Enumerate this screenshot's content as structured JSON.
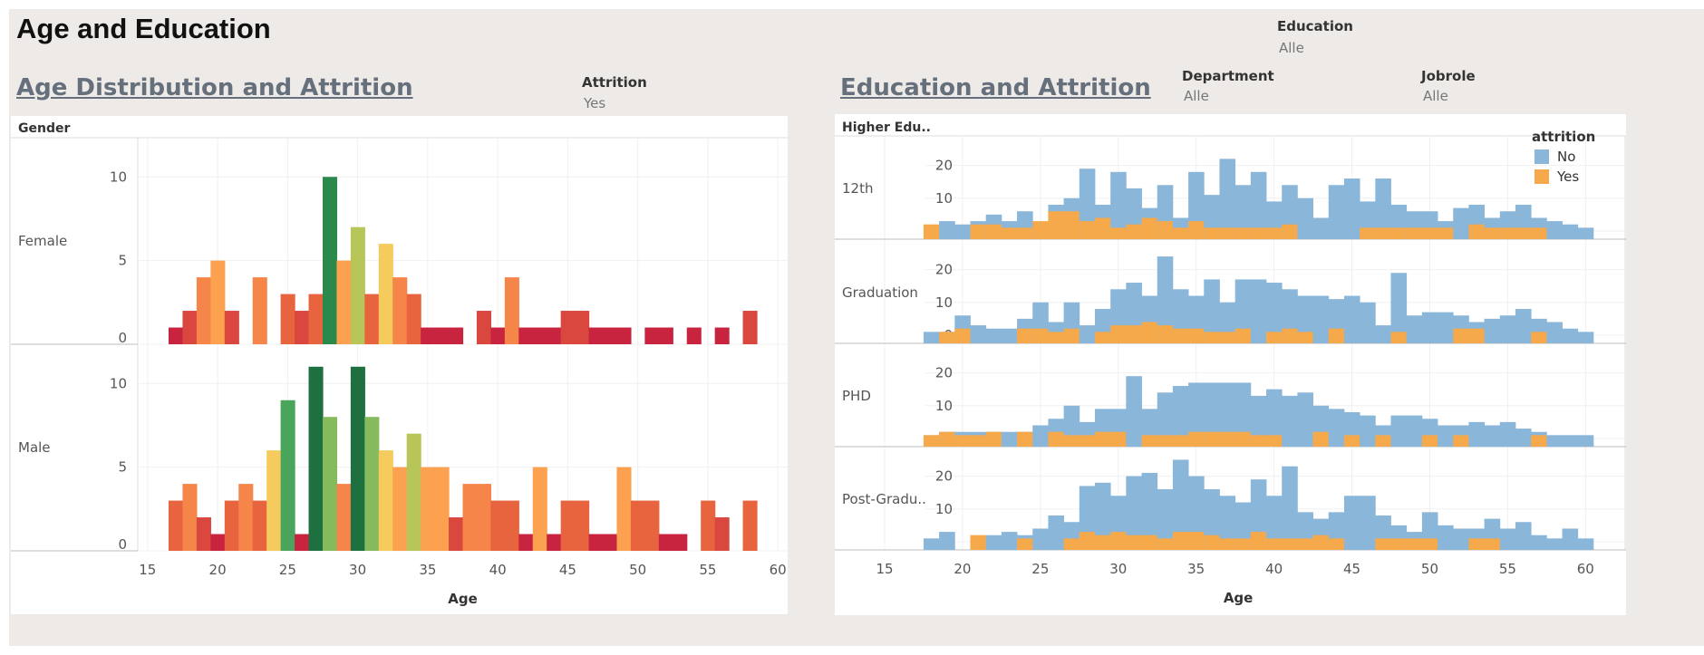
{
  "dashboard": {
    "title": "Age and Education",
    "left_sheet_title": "Age Distribution and Attrition",
    "right_sheet_title": "Education and Attrition"
  },
  "filters": {
    "attrition": {
      "label": "Attrition",
      "value": "Yes"
    },
    "education": {
      "label": "Education",
      "value": "Alle"
    },
    "department": {
      "label": "Department",
      "value": "Alle"
    },
    "jobrole": {
      "label": "Jobrole",
      "value": "Alle"
    }
  },
  "legend": {
    "title": "attrition",
    "items": [
      {
        "label": "No",
        "color": "#8ab6da"
      },
      {
        "label": "Yes",
        "color": "#f6a94a"
      }
    ]
  },
  "chart_data": [
    {
      "type": "bar",
      "title": "Age Distribution and Attrition",
      "row_header": "Gender",
      "xlabel": "Age",
      "x_ticks": [
        15,
        20,
        25,
        30,
        35,
        40,
        45,
        50,
        55,
        60
      ],
      "x_range": [
        14.3,
        60.7
      ],
      "y_ticks": [
        0,
        5,
        10
      ],
      "y_range": [
        0,
        11.8
      ],
      "bar_color_scale": [
        "#c8243f",
        "#d9473f",
        "#e8643f",
        "#f58548",
        "#fba150",
        "#f5cb5d",
        "#b7c559",
        "#86bb5d",
        "#4aa55c",
        "#2b8a4b",
        "#1e7040"
      ],
      "rows": [
        {
          "label": "Female",
          "ages": [
            17,
            18,
            19,
            20,
            21,
            23,
            25,
            26,
            27,
            28,
            29,
            30,
            31,
            32,
            33,
            34,
            35,
            36,
            37,
            39,
            40,
            41,
            42,
            43,
            44,
            45,
            46,
            47,
            48,
            49,
            51,
            52,
            54,
            56,
            58
          ],
          "counts": [
            1,
            2,
            4,
            5,
            2,
            4,
            3,
            2,
            3,
            10,
            5,
            7,
            3,
            6,
            4,
            3,
            1,
            1,
            1,
            2,
            1,
            4,
            1,
            1,
            1,
            2,
            2,
            1,
            1,
            1,
            1,
            1,
            1,
            1,
            2
          ]
        },
        {
          "label": "Male",
          "ages": [
            17,
            18,
            19,
            20,
            21,
            22,
            23,
            24,
            25,
            26,
            27,
            28,
            29,
            30,
            31,
            32,
            33,
            34,
            35,
            36,
            37,
            38,
            39,
            40,
            41,
            42,
            43,
            44,
            45,
            46,
            47,
            48,
            49,
            50,
            51,
            52,
            53,
            55,
            56,
            58
          ],
          "counts": [
            3,
            4,
            2,
            1,
            3,
            4,
            3,
            6,
            9,
            1,
            11,
            8,
            4,
            11,
            8,
            6,
            5,
            7,
            5,
            5,
            2,
            4,
            4,
            3,
            3,
            1,
            5,
            1,
            3,
            3,
            1,
            1,
            5,
            3,
            3,
            1,
            1,
            3,
            2,
            3
          ]
        }
      ]
    },
    {
      "type": "bar",
      "title": "Education and Attrition",
      "row_header": "Higher Edu..",
      "xlabel": "Age",
      "x_ticks": [
        15,
        20,
        25,
        30,
        35,
        40,
        45,
        50,
        55,
        60
      ],
      "x_range": [
        11.8,
        62.6
      ],
      "y_ticks": [
        0,
        10,
        20
      ],
      "y_range": [
        -2.5,
        29
      ],
      "age_start": 18,
      "age_end": 60,
      "series": [
        {
          "name": "No",
          "color": "#8ab6da"
        },
        {
          "name": "Yes",
          "color": "#f6a94a"
        }
      ],
      "rows": [
        {
          "label": "12th",
          "no": [
            1,
            3,
            2,
            3,
            5,
            3,
            6,
            2,
            8,
            10,
            19,
            8,
            18,
            13,
            7,
            14,
            4,
            18,
            11,
            22,
            14,
            18,
            9,
            14,
            10,
            4,
            14,
            16,
            9,
            16,
            8,
            6,
            6,
            3,
            7,
            8,
            4,
            6,
            8,
            4,
            3,
            2,
            1
          ],
          "yes": [
            2,
            0,
            0,
            2,
            2,
            1,
            1,
            3,
            6,
            6,
            3,
            4,
            1,
            2,
            4,
            3,
            1,
            3,
            1,
            1,
            1,
            1,
            1,
            2,
            0,
            0,
            0,
            0,
            1,
            1,
            1,
            1,
            1,
            1,
            0,
            2,
            1,
            1,
            1,
            1,
            0,
            0,
            0
          ]
        },
        {
          "label": "Graduation",
          "no": [
            1,
            1,
            6,
            3,
            2,
            2,
            5,
            10,
            4,
            10,
            3,
            8,
            14,
            16,
            12,
            24,
            14,
            12,
            17,
            10,
            17,
            17,
            16,
            14,
            12,
            12,
            11,
            12,
            10,
            3,
            19,
            6,
            7,
            7,
            6,
            4,
            5,
            6,
            8,
            5,
            4,
            2,
            1
          ],
          "yes": [
            0,
            1,
            2,
            0,
            0,
            0,
            2,
            2,
            1,
            2,
            0,
            1,
            3,
            3,
            4,
            3,
            2,
            2,
            1,
            1,
            2,
            0,
            1,
            2,
            1,
            0,
            2,
            0,
            0,
            0,
            1,
            0,
            0,
            0,
            2,
            2,
            0,
            0,
            0,
            1,
            0,
            0,
            0
          ]
        },
        {
          "label": "PHD",
          "no": [
            1,
            2,
            2,
            2,
            2,
            2,
            2,
            4,
            6,
            10,
            5,
            9,
            9,
            19,
            9,
            14,
            16,
            17,
            17,
            17,
            17,
            13,
            15,
            13,
            14,
            10,
            9,
            8,
            7,
            4,
            7,
            7,
            6,
            4,
            4,
            5,
            4,
            5,
            3,
            2,
            1,
            1,
            1
          ],
          "yes": [
            1,
            2,
            1,
            1,
            2,
            0,
            2,
            0,
            2,
            1,
            1,
            2,
            2,
            0,
            1,
            1,
            1,
            2,
            2,
            2,
            2,
            1,
            1,
            0,
            0,
            2,
            0,
            1,
            0,
            1,
            0,
            0,
            1,
            0,
            1,
            0,
            0,
            0,
            0,
            1,
            0,
            0,
            0
          ]
        },
        {
          "label": "Post-Gradu..",
          "no": [
            1,
            3,
            0,
            1,
            2,
            3,
            2,
            4,
            8,
            6,
            17,
            18,
            14,
            20,
            21,
            16,
            25,
            20,
            16,
            14,
            12,
            19,
            14,
            23,
            9,
            7,
            9,
            14,
            14,
            8,
            5,
            3,
            9,
            5,
            4,
            4,
            7,
            4,
            6,
            2,
            1,
            4,
            1
          ],
          "yes": [
            0,
            0,
            0,
            2,
            0,
            0,
            1,
            0,
            0,
            1,
            3,
            2,
            3,
            2,
            2,
            1,
            3,
            3,
            2,
            1,
            1,
            3,
            1,
            1,
            1,
            2,
            1,
            0,
            0,
            1,
            1,
            1,
            1,
            0,
            0,
            1,
            1,
            0,
            0,
            0,
            0,
            0,
            0
          ]
        }
      ]
    }
  ]
}
